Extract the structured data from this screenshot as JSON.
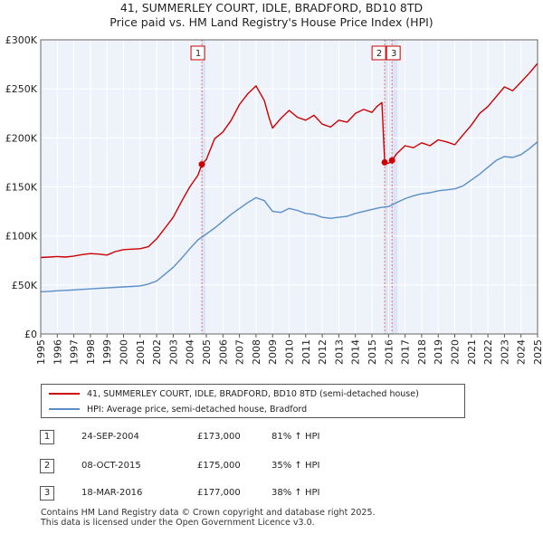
{
  "title": "41, SUMMERLEY COURT, IDLE, BRADFORD, BD10 8TD",
  "subtitle": "Price paid vs. HM Land Registry's House Price Index (HPI)",
  "chart_data": {
    "type": "line",
    "title": "41, SUMMERLEY COURT, IDLE, BRADFORD, BD10 8TD",
    "subtitle": "Price paid vs. HM Land Registry's House Price Index (HPI)",
    "xlabel": "",
    "ylabel": "",
    "xlim": [
      1995.0,
      2025.0
    ],
    "ylim": [
      0,
      300000
    ],
    "x_ticks": [
      1995,
      1996,
      1997,
      1998,
      1999,
      2000,
      2001,
      2002,
      2003,
      2004,
      2005,
      2006,
      2007,
      2008,
      2009,
      2010,
      2011,
      2012,
      2013,
      2014,
      2015,
      2016,
      2017,
      2018,
      2019,
      2020,
      2021,
      2022,
      2023,
      2024,
      2025
    ],
    "x_tick_labels": [
      "1995",
      "1996",
      "1997",
      "1998",
      "1999",
      "2000",
      "2001",
      "2002",
      "2003",
      "2004",
      "2005",
      "2006",
      "2007",
      "2008",
      "2009",
      "2010",
      "2011",
      "2012",
      "2013",
      "2014",
      "2015",
      "2016",
      "2017",
      "2018",
      "2019",
      "2020",
      "2021",
      "2022",
      "2023",
      "2024",
      "2025"
    ],
    "y_ticks": [
      0,
      50000,
      100000,
      150000,
      200000,
      250000,
      300000
    ],
    "y_tick_labels": [
      "£0",
      "£50K",
      "£100K",
      "£150K",
      "£200K",
      "£250K",
      "£300K"
    ],
    "grid": true,
    "series": [
      {
        "name": "41, SUMMERLEY COURT, IDLE, BRADFORD, BD10 8TD (semi-detached house)",
        "color": "#cc0000",
        "x": [
          1995.0,
          1995.5,
          1996.0,
          1996.5,
          1997.0,
          1997.5,
          1998.0,
          1998.5,
          1999.0,
          1999.5,
          2000.0,
          2000.5,
          2001.0,
          2001.5,
          2002.0,
          2002.5,
          2003.0,
          2003.5,
          2004.0,
          2004.5,
          2004.73,
          2005.0,
          2005.5,
          2006.0,
          2006.5,
          2007.0,
          2007.5,
          2008.0,
          2008.5,
          2008.8,
          2009.0,
          2009.5,
          2010.0,
          2010.5,
          2011.0,
          2011.5,
          2012.0,
          2012.5,
          2013.0,
          2013.5,
          2014.0,
          2014.5,
          2015.0,
          2015.3,
          2015.6,
          2015.77,
          2016.0,
          2016.21,
          2016.5,
          2017.0,
          2017.5,
          2018.0,
          2018.5,
          2019.0,
          2019.5,
          2020.0,
          2020.5,
          2021.0,
          2021.5,
          2022.0,
          2022.5,
          2023.0,
          2023.5,
          2024.0,
          2024.5,
          2025.0
        ],
        "values": [
          78000,
          78500,
          79000,
          78500,
          79500,
          81000,
          82000,
          81500,
          80500,
          84000,
          86000,
          86500,
          87000,
          89000,
          97000,
          108000,
          119000,
          135000,
          150000,
          162000,
          173000,
          178000,
          199000,
          206000,
          218000,
          234000,
          245000,
          253000,
          238000,
          220000,
          210000,
          220000,
          228000,
          221000,
          218000,
          223000,
          214000,
          211000,
          218000,
          216000,
          225000,
          229000,
          226000,
          232000,
          236000,
          175000,
          174000,
          177000,
          184000,
          192000,
          190000,
          195000,
          192000,
          198000,
          196000,
          193000,
          203000,
          213000,
          225000,
          232000,
          242000,
          252000,
          248000,
          257000,
          266000,
          276000
        ]
      },
      {
        "name": "HPI: Average price, semi-detached house, Bradford",
        "color": "#5b8ec9",
        "x": [
          1995.0,
          1995.5,
          1996.0,
          1996.5,
          1997.0,
          1997.5,
          1998.0,
          1998.5,
          1999.0,
          1999.5,
          2000.0,
          2000.5,
          2001.0,
          2001.5,
          2002.0,
          2002.5,
          2003.0,
          2003.5,
          2004.0,
          2004.5,
          2005.0,
          2005.5,
          2006.0,
          2006.5,
          2007.0,
          2007.5,
          2008.0,
          2008.5,
          2009.0,
          2009.5,
          2010.0,
          2010.5,
          2011.0,
          2011.5,
          2012.0,
          2012.5,
          2013.0,
          2013.5,
          2014.0,
          2014.5,
          2015.0,
          2015.5,
          2016.0,
          2016.5,
          2017.0,
          2017.5,
          2018.0,
          2018.5,
          2019.0,
          2019.5,
          2020.0,
          2020.5,
          2021.0,
          2021.5,
          2022.0,
          2022.5,
          2023.0,
          2023.5,
          2024.0,
          2024.5,
          2025.0
        ],
        "values": [
          43000,
          43500,
          44000,
          44500,
          45000,
          45500,
          46000,
          46500,
          47000,
          47500,
          48000,
          48500,
          49000,
          51000,
          54000,
          61000,
          68000,
          77000,
          87000,
          96000,
          102000,
          108000,
          115000,
          122000,
          128000,
          134000,
          139000,
          136000,
          125000,
          124000,
          128000,
          126000,
          123000,
          122000,
          119000,
          118000,
          119000,
          120000,
          123000,
          125000,
          127000,
          129000,
          130000,
          134000,
          138000,
          141000,
          143000,
          144000,
          146000,
          147000,
          148000,
          151000,
          157000,
          163000,
          170000,
          177000,
          181000,
          180000,
          183000,
          189000,
          196000
        ]
      }
    ],
    "sales": [
      {
        "label": "1",
        "date": "24-SEP-2004",
        "x": 2004.73,
        "price": 173000
      },
      {
        "label": "2",
        "date": "08-OCT-2015",
        "x": 2015.77,
        "price": 175000
      },
      {
        "label": "3",
        "date": "18-MAR-2016",
        "x": 2016.21,
        "price": 177000
      }
    ]
  },
  "legend": {
    "property_label": "41, SUMMERLEY COURT, IDLE, BRADFORD, BD10 8TD (semi-detached house)",
    "hpi_label": "HPI: Average price, semi-detached house, Bradford"
  },
  "transactions": [
    {
      "num": "1",
      "date": "24-SEP-2004",
      "price": "£173,000",
      "hpi": "81% ↑ HPI"
    },
    {
      "num": "2",
      "date": "08-OCT-2015",
      "price": "£175,000",
      "hpi": "35% ↑ HPI"
    },
    {
      "num": "3",
      "date": "18-MAR-2016",
      "price": "£177,000",
      "hpi": "38% ↑ HPI"
    }
  ],
  "footer": {
    "line1": "Contains HM Land Registry data © Crown copyright and database right 2025.",
    "line2": "This data is licensed under the Open Government Licence v3.0."
  }
}
